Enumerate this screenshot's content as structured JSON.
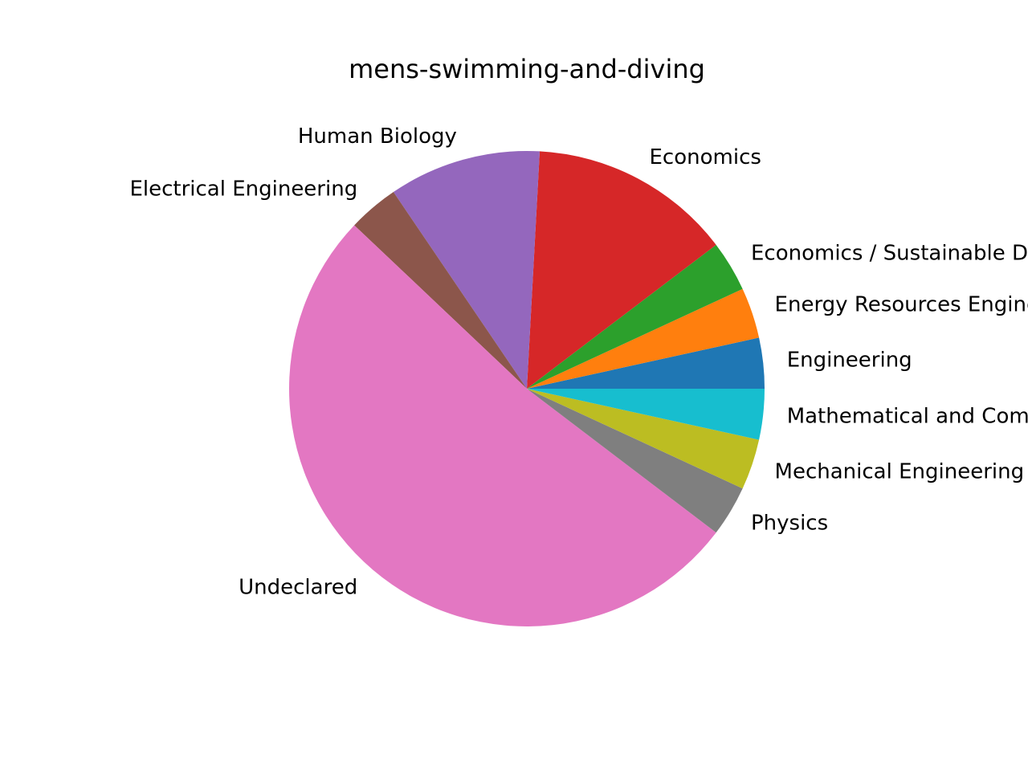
{
  "chart_data": {
    "type": "pie",
    "title": "mens-swimming-and-diving",
    "start_angle_deg": 0,
    "direction": "counterclockwise",
    "slices": [
      {
        "label": "Engineering",
        "value": 1,
        "color": "#1f77b4"
      },
      {
        "label": "Energy Resources Engineering",
        "value": 1,
        "color": "#ff7f0e"
      },
      {
        "label": "Economics / Sustainable Development",
        "value": 1,
        "color": "#2ca02c"
      },
      {
        "label": "Economics",
        "value": 4,
        "color": "#d62728"
      },
      {
        "label": "Human Biology",
        "value": 3,
        "color": "#9467bd"
      },
      {
        "label": "Electrical Engineering",
        "value": 1,
        "color": "#8c564b"
      },
      {
        "label": "Undeclared",
        "value": 15,
        "color": "#e377c2"
      },
      {
        "label": "Physics",
        "value": 1,
        "color": "#7f7f7f"
      },
      {
        "label": "Mechanical Engineering",
        "value": 1,
        "color": "#bcbd22"
      },
      {
        "label": "Mathematical and Computational Science",
        "value": 1,
        "color": "#17becf"
      }
    ]
  }
}
